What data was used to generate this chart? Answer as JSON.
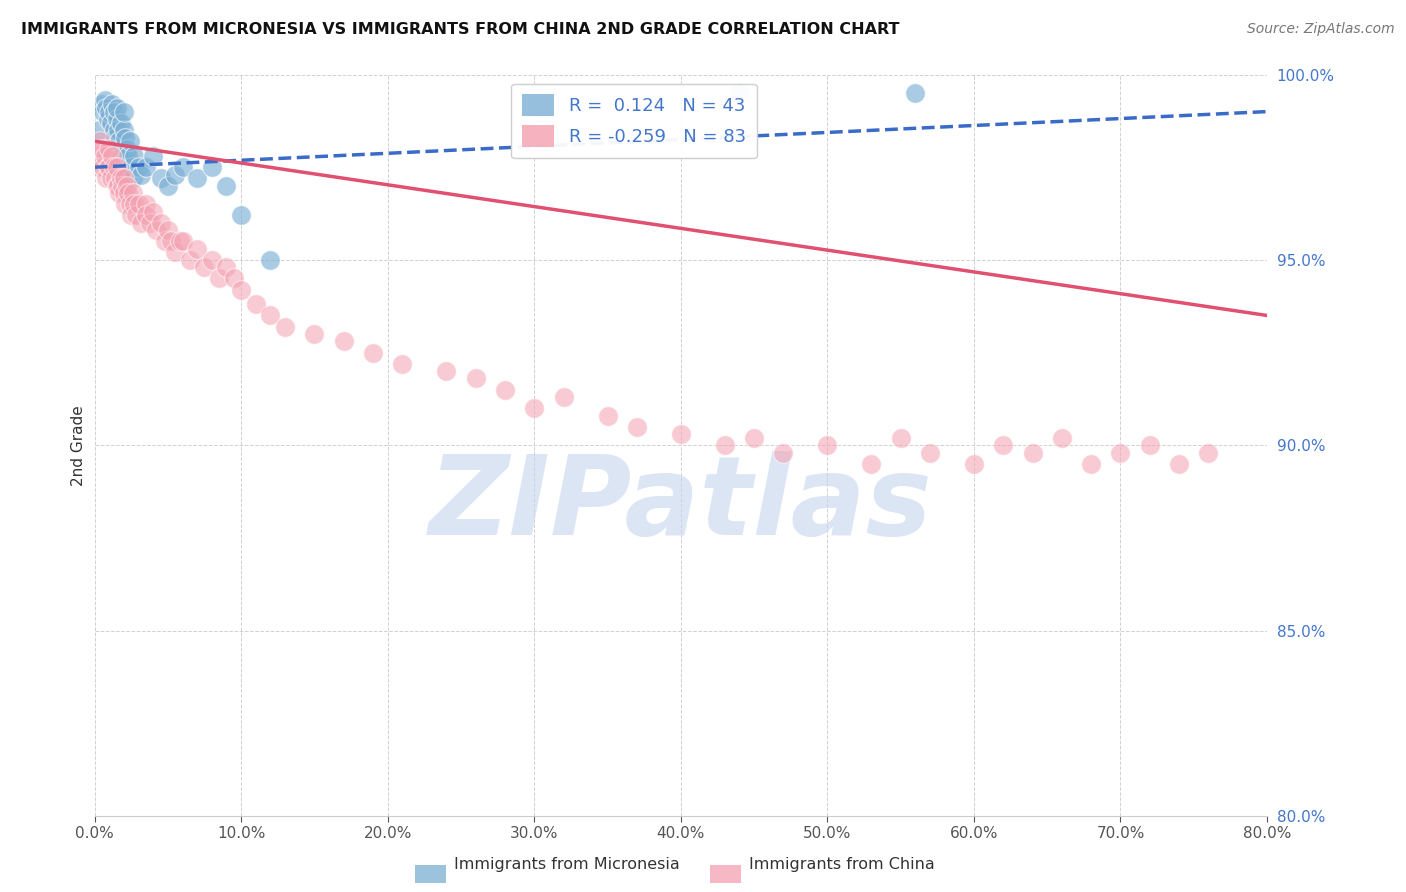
{
  "title": "IMMIGRANTS FROM MICRONESIA VS IMMIGRANTS FROM CHINA 2ND GRADE CORRELATION CHART",
  "source": "Source: ZipAtlas.com",
  "ylabel": "2nd Grade",
  "xlim": [
    0.0,
    80.0
  ],
  "ylim": [
    80.0,
    100.0
  ],
  "xticks": [
    0.0,
    10.0,
    20.0,
    30.0,
    40.0,
    50.0,
    60.0,
    70.0,
    80.0
  ],
  "yticks": [
    80.0,
    85.0,
    90.0,
    95.0,
    100.0
  ],
  "micronesia_R": 0.124,
  "micronesia_N": 43,
  "china_R": -0.259,
  "china_N": 83,
  "micronesia_color": "#7BAFD4",
  "china_color": "#F4A0B0",
  "micronesia_line_color": "#3A6BC8",
  "china_line_color": "#E05070",
  "watermark": "ZIPatlas",
  "watermark_color": "#C5D5EE",
  "tick_color": "#4477CC",
  "micronesia_line_y0": 97.5,
  "micronesia_line_y1": 99.0,
  "china_line_y0": 98.2,
  "china_line_y1": 93.5,
  "micronesia_x": [
    0.3,
    0.5,
    0.6,
    0.7,
    0.8,
    0.9,
    1.0,
    1.1,
    1.2,
    1.3,
    1.3,
    1.4,
    1.5,
    1.5,
    1.6,
    1.7,
    1.8,
    1.9,
    2.0,
    2.0,
    2.1,
    2.1,
    2.2,
    2.3,
    2.4,
    2.5,
    2.6,
    2.7,
    3.0,
    3.2,
    3.5,
    4.0,
    4.5,
    5.0,
    5.5,
    6.0,
    7.0,
    8.0,
    9.0,
    10.0,
    12.0,
    44.0,
    56.0
  ],
  "micronesia_y": [
    98.5,
    99.2,
    99.0,
    99.3,
    99.1,
    98.8,
    99.0,
    98.7,
    99.2,
    98.5,
    99.0,
    98.3,
    98.8,
    99.1,
    98.5,
    98.2,
    98.7,
    97.8,
    98.5,
    99.0,
    98.3,
    97.5,
    98.0,
    97.8,
    98.2,
    97.5,
    97.2,
    97.8,
    97.5,
    97.3,
    97.5,
    97.8,
    97.2,
    97.0,
    97.3,
    97.5,
    97.2,
    97.5,
    97.0,
    96.2,
    95.0,
    99.5,
    99.5
  ],
  "china_x": [
    0.2,
    0.3,
    0.4,
    0.5,
    0.6,
    0.7,
    0.8,
    0.9,
    1.0,
    1.0,
    1.1,
    1.2,
    1.3,
    1.4,
    1.5,
    1.5,
    1.6,
    1.7,
    1.8,
    1.9,
    2.0,
    2.0,
    2.1,
    2.2,
    2.3,
    2.4,
    2.5,
    2.6,
    2.7,
    2.8,
    3.0,
    3.2,
    3.5,
    3.5,
    3.8,
    4.0,
    4.2,
    4.5,
    4.8,
    5.0,
    5.2,
    5.5,
    5.8,
    6.0,
    6.5,
    7.0,
    7.5,
    8.0,
    8.5,
    9.0,
    9.5,
    10.0,
    11.0,
    12.0,
    13.0,
    15.0,
    17.0,
    19.0,
    21.0,
    24.0,
    26.0,
    28.0,
    30.0,
    32.0,
    35.0,
    37.0,
    40.0,
    43.0,
    45.0,
    47.0,
    50.0,
    53.0,
    55.0,
    57.0,
    60.0,
    62.0,
    64.0,
    66.0,
    68.0,
    70.0,
    72.0,
    74.0,
    76.0
  ],
  "china_y": [
    97.8,
    97.5,
    98.2,
    98.0,
    97.5,
    97.8,
    97.2,
    97.5,
    98.0,
    97.5,
    97.2,
    97.8,
    97.5,
    97.2,
    97.0,
    97.5,
    97.0,
    96.8,
    97.2,
    97.0,
    96.8,
    97.2,
    96.5,
    97.0,
    96.8,
    96.5,
    96.2,
    96.8,
    96.5,
    96.2,
    96.5,
    96.0,
    96.5,
    96.2,
    96.0,
    96.3,
    95.8,
    96.0,
    95.5,
    95.8,
    95.5,
    95.2,
    95.5,
    95.5,
    95.0,
    95.3,
    94.8,
    95.0,
    94.5,
    94.8,
    94.5,
    94.2,
    93.8,
    93.5,
    93.2,
    93.0,
    92.8,
    92.5,
    92.2,
    92.0,
    91.8,
    91.5,
    91.0,
    91.3,
    90.8,
    90.5,
    90.3,
    90.0,
    90.2,
    89.8,
    90.0,
    89.5,
    90.2,
    89.8,
    89.5,
    90.0,
    89.8,
    90.2,
    89.5,
    89.8,
    90.0,
    89.5,
    89.8
  ]
}
